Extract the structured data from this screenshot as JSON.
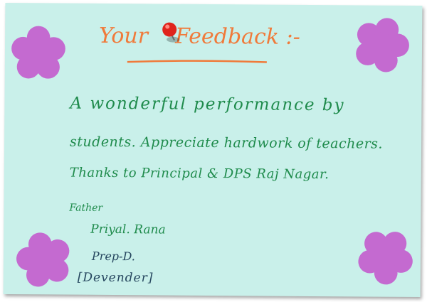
{
  "card": {
    "title_part1": "Your",
    "title_part2": "Feedback :-",
    "message_lines": [
      "A wonderful performance by",
      "students. Appreciate hardwork of teachers.",
      "Thanks to Principal & DPS Raj Nagar."
    ],
    "signature": {
      "relation": "Father",
      "name": "Priyal. Rana",
      "class": "Prep-D.",
      "child": "[Devender]"
    }
  },
  "colors": {
    "card_background": "#c9f0ea",
    "title": "#f07a3a",
    "message_ink": "#1f8b4c",
    "signature_ink": "#25455e",
    "flower": "#c46ad0",
    "pin": "#e0241c"
  },
  "icons": [
    "push-pin-icon",
    "flower-icon"
  ]
}
